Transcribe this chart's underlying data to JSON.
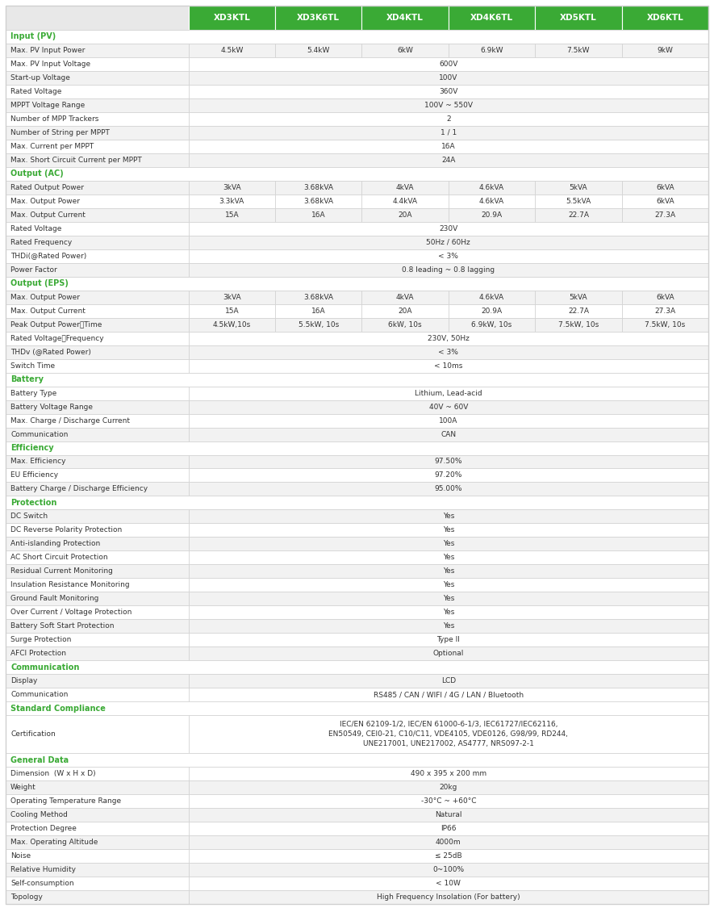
{
  "header_bg": "#3aaa35",
  "header_text_color": "#ffffff",
  "section_text_color": "#3aaa35",
  "row_bg_light": "#ffffff",
  "row_bg_dark": "#f2f2f2",
  "border_color": "#d0d0d0",
  "text_color": "#333333",
  "columns": [
    "",
    "XD3KTL",
    "XD3K6TL",
    "XD4KTL",
    "XD4K6TL",
    "XD5KTL",
    "XD6KTL"
  ],
  "rows": [
    {
      "label": "Input (PV)",
      "section": true
    },
    {
      "label": "Max. PV Input Power",
      "values": [
        "4.5kW",
        "5.4kW",
        "6kW",
        "6.9kW",
        "7.5kW",
        "9kW"
      ]
    },
    {
      "label": "Max. PV Input Voltage",
      "values": [
        "600V"
      ],
      "span": true
    },
    {
      "label": "Start-up Voltage",
      "values": [
        "100V"
      ],
      "span": true
    },
    {
      "label": "Rated Voltage",
      "values": [
        "360V"
      ],
      "span": true
    },
    {
      "label": "MPPT Voltage Range",
      "values": [
        "100V ~ 550V"
      ],
      "span": true
    },
    {
      "label": "Number of MPP Trackers",
      "values": [
        "2"
      ],
      "span": true
    },
    {
      "label": "Number of String per MPPT",
      "values": [
        "1 / 1"
      ],
      "span": true
    },
    {
      "label": "Max. Current per MPPT",
      "values": [
        "16A"
      ],
      "span": true
    },
    {
      "label": "Max. Short Circuit Current per MPPT",
      "values": [
        "24A"
      ],
      "span": true
    },
    {
      "label": "Output (AC)",
      "section": true
    },
    {
      "label": "Rated Output Power",
      "values": [
        "3kVA",
        "3.68kVA",
        "4kVA",
        "4.6kVA",
        "5kVA",
        "6kVA"
      ]
    },
    {
      "label": "Max. Output Power",
      "values": [
        "3.3kVA",
        "3.68kVA",
        "4.4kVA",
        "4.6kVA",
        "5.5kVA",
        "6kVA"
      ]
    },
    {
      "label": "Max. Output Current",
      "values": [
        "15A",
        "16A",
        "20A",
        "20.9A",
        "22.7A",
        "27.3A"
      ]
    },
    {
      "label": "Rated Voltage",
      "values": [
        "230V"
      ],
      "span": true
    },
    {
      "label": "Rated Frequency",
      "values": [
        "50Hz / 60Hz"
      ],
      "span": true
    },
    {
      "label": "THDi(@Rated Power)",
      "values": [
        "< 3%"
      ],
      "span": true
    },
    {
      "label": "Power Factor",
      "values": [
        "0.8 leading ~ 0.8 lagging"
      ],
      "span": true
    },
    {
      "label": "Output (EPS)",
      "section": true
    },
    {
      "label": "Max. Output Power",
      "values": [
        "3kVA",
        "3.68kVA",
        "4kVA",
        "4.6kVA",
        "5kVA",
        "6kVA"
      ]
    },
    {
      "label": "Max. Output Current",
      "values": [
        "15A",
        "16A",
        "20A",
        "20.9A",
        "22.7A",
        "27.3A"
      ]
    },
    {
      "label": "Peak Output Power，Time",
      "values": [
        "4.5kW,10s",
        "5.5kW, 10s",
        "6kW, 10s",
        "6.9kW, 10s",
        "7.5kW, 10s",
        "7.5kW, 10s"
      ]
    },
    {
      "label": "Rated Voltage，Frequency",
      "values": [
        "230V, 50Hz"
      ],
      "span": true
    },
    {
      "label": "THDv (@Rated Power)",
      "values": [
        "< 3%"
      ],
      "span": true
    },
    {
      "label": "Switch Time",
      "values": [
        "< 10ms"
      ],
      "span": true
    },
    {
      "label": "Battery",
      "section": true
    },
    {
      "label": "Battery Type",
      "values": [
        "Lithium, Lead-acid"
      ],
      "span": true
    },
    {
      "label": "Battery Voltage Range",
      "values": [
        "40V ~ 60V"
      ],
      "span": true
    },
    {
      "label": "Max. Charge / Discharge Current",
      "values": [
        "100A"
      ],
      "span": true
    },
    {
      "label": "Communication",
      "values": [
        "CAN"
      ],
      "span": true
    },
    {
      "label": "Efficiency",
      "section": true
    },
    {
      "label": "Max. Efficiency",
      "values": [
        "97.50%"
      ],
      "span": true
    },
    {
      "label": "EU Efficiency",
      "values": [
        "97.20%"
      ],
      "span": true
    },
    {
      "label": "Battery Charge / Discharge Efficiency",
      "values": [
        "95.00%"
      ],
      "span": true
    },
    {
      "label": "Protection",
      "section": true
    },
    {
      "label": "DC Switch",
      "values": [
        "Yes"
      ],
      "span": true
    },
    {
      "label": "DC Reverse Polarity Protection",
      "values": [
        "Yes"
      ],
      "span": true
    },
    {
      "label": "Anti-islanding Protection",
      "values": [
        "Yes"
      ],
      "span": true
    },
    {
      "label": "AC Short Circuit Protection",
      "values": [
        "Yes"
      ],
      "span": true
    },
    {
      "label": "Residual Current Monitoring",
      "values": [
        "Yes"
      ],
      "span": true
    },
    {
      "label": "Insulation Resistance Monitoring",
      "values": [
        "Yes"
      ],
      "span": true
    },
    {
      "label": "Ground Fault Monitoring",
      "values": [
        "Yes"
      ],
      "span": true
    },
    {
      "label": "Over Current / Voltage Protection",
      "values": [
        "Yes"
      ],
      "span": true
    },
    {
      "label": "Battery Soft Start Protection",
      "values": [
        "Yes"
      ],
      "span": true
    },
    {
      "label": "Surge Protection",
      "values": [
        "Type II"
      ],
      "span": true
    },
    {
      "label": "AFCI Protection",
      "values": [
        "Optional"
      ],
      "span": true
    },
    {
      "label": "Communication",
      "section": true
    },
    {
      "label": "Display",
      "values": [
        "LCD"
      ],
      "span": true
    },
    {
      "label": "Communication",
      "values": [
        "RS485 / CAN / WIFI / 4G / LAN / Bluetooth"
      ],
      "span": true
    },
    {
      "label": "Standard Compliance",
      "section": true
    },
    {
      "label": "Certification",
      "values": [
        "IEC/EN 62109-1/2, IEC/EN 61000-6-1/3, IEC61727/IEC62116,\nEN50549, CEI0-21, C10/C11, VDE4105, VDE0126, G98/99, RD244,\nUNE217001, UNE217002, AS4777, NRS097-2-1"
      ],
      "span": true,
      "multiline": true
    },
    {
      "label": "General Data",
      "section": true
    },
    {
      "label": "Dimension  (W x H x D)",
      "values": [
        "490 x 395 x 200 mm"
      ],
      "span": true
    },
    {
      "label": "Weight",
      "values": [
        "20kg"
      ],
      "span": true
    },
    {
      "label": "Operating Temperature Range",
      "values": [
        "-30°C ~ +60°C"
      ],
      "span": true
    },
    {
      "label": "Cooling Method",
      "values": [
        "Natural"
      ],
      "span": true
    },
    {
      "label": "Protection Degree",
      "values": [
        "IP66"
      ],
      "span": true
    },
    {
      "label": "Max. Operating Altitude",
      "values": [
        "4000m"
      ],
      "span": true
    },
    {
      "label": "Noise",
      "values": [
        "≤ 25dB"
      ],
      "span": true
    },
    {
      "label": "Relative Humidity",
      "values": [
        "0~100%"
      ],
      "span": true
    },
    {
      "label": "Self-consumption",
      "values": [
        "< 10W"
      ],
      "span": true
    },
    {
      "label": "Topology",
      "values": [
        "High Frequency Insolation (For battery)"
      ],
      "span": true
    }
  ]
}
